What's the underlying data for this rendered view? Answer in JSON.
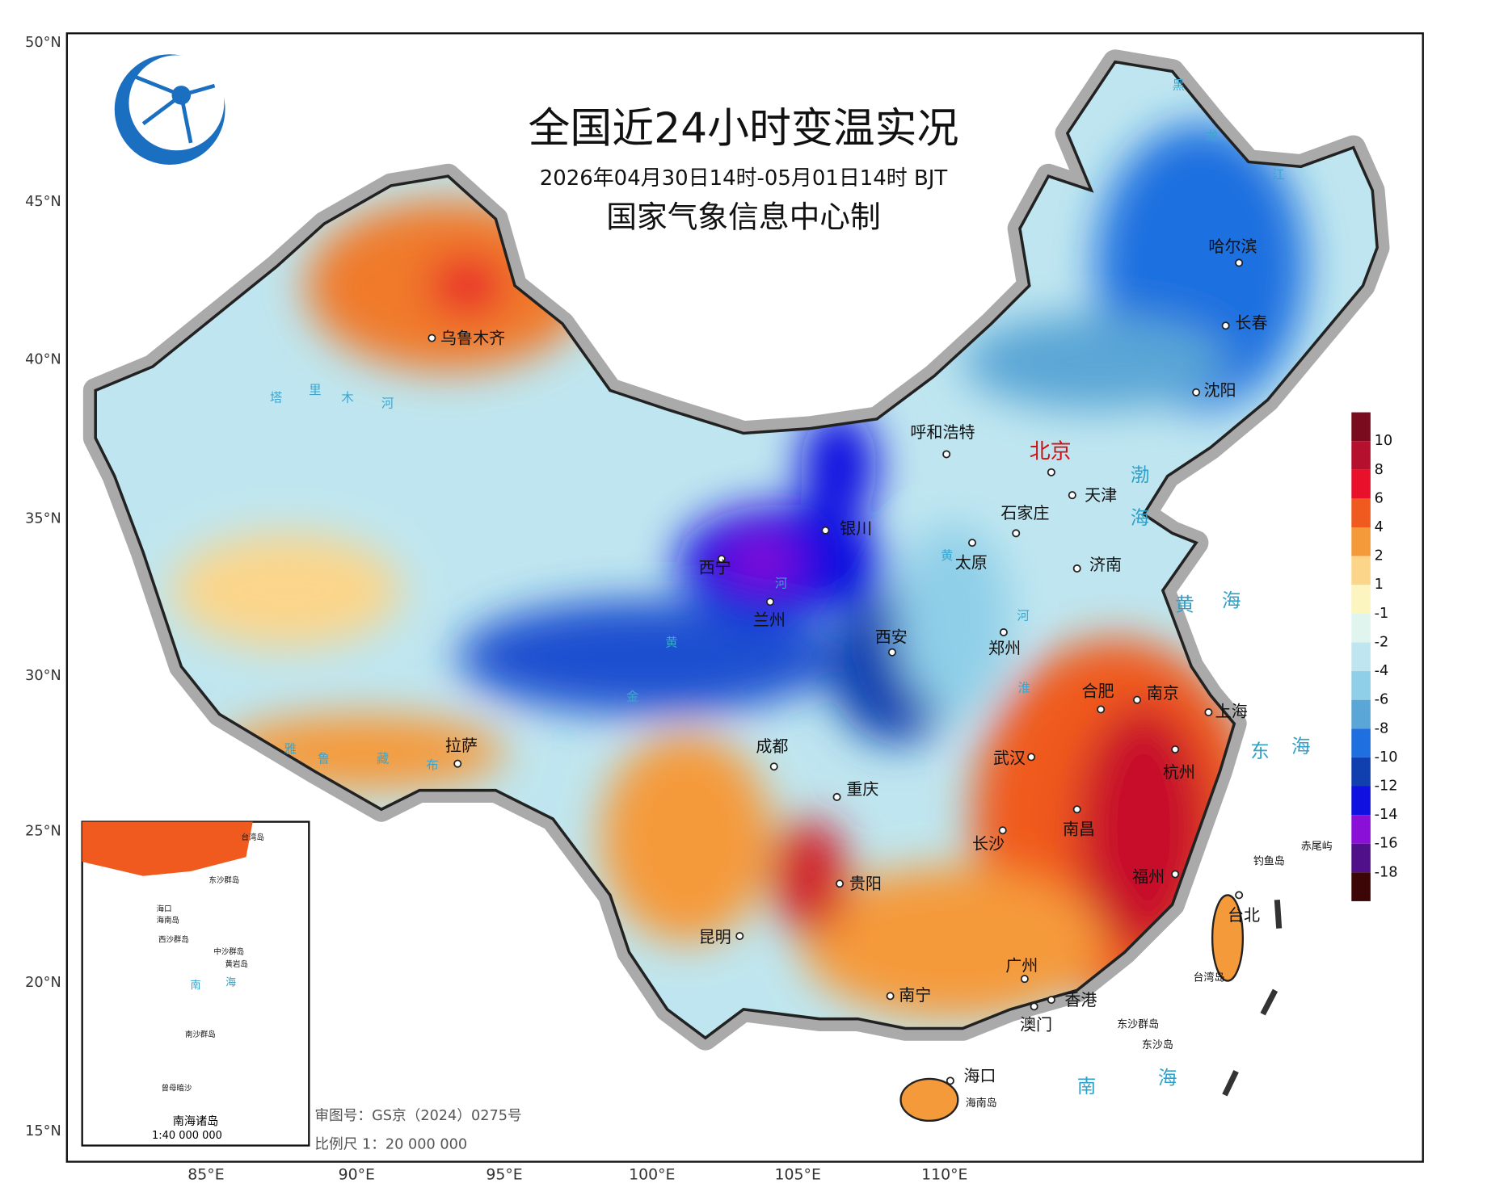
{
  "header": {
    "title": "全国近24小时变温实况",
    "subtitle": "2026年04月30日14时-05月01日14时 BJT",
    "producer": "国家气象信息中心制"
  },
  "lat_labels": [
    "50°N",
    "45°N",
    "40°N",
    "35°N",
    "30°N",
    "25°N",
    "20°N",
    "15°N"
  ],
  "lon_labels": [
    "85°E",
    "90°E",
    "95°E",
    "100°E",
    "105°E",
    "110°E"
  ],
  "cities": [
    "乌鲁木齐",
    "呼和浩特",
    "北京",
    "天津",
    "石家庄",
    "沈阳",
    "长春",
    "哈尔滨",
    "银川",
    "太原",
    "济南",
    "西宁",
    "兰州",
    "西安",
    "郑州",
    "合肥",
    "南京",
    "上海",
    "拉萨",
    "成都",
    "重庆",
    "武汉",
    "杭州",
    "长沙",
    "南昌",
    "福州",
    "贵阳",
    "昆明",
    "台北",
    "广州",
    "南宁",
    "香港",
    "澳门",
    "海口"
  ],
  "islands": [
    "台湾岛",
    "钓鱼岛",
    "赤尾屿",
    "东沙群岛",
    "东沙岛",
    "海南岛"
  ],
  "seas": [
    "渤",
    "海",
    "黄",
    "海",
    "东",
    "海",
    "南",
    "海"
  ],
  "rivers": [
    "塔",
    "里",
    "木",
    "河",
    "黄",
    "河",
    "黄",
    "河",
    "淮",
    "金",
    "雅",
    "鲁",
    "藏",
    "布",
    "黑",
    "龙",
    "江"
  ],
  "legend": {
    "ticks": [
      10,
      8,
      6,
      4,
      2,
      1,
      -1,
      -2,
      -4,
      -6,
      -8,
      -10,
      -12,
      -14,
      -16,
      -18
    ],
    "colors": [
      "#7a0a1e",
      "#b5102e",
      "#e8102a",
      "#f05a1e",
      "#f59a3a",
      "#fbd58a",
      "#fdf5c0",
      "#e0f5ee",
      "#bfe6f0",
      "#8fcfe8",
      "#5aa6d6",
      "#1f6fe0",
      "#1040b0",
      "#1010e0",
      "#8a10d8",
      "#50108a",
      "#3c0606"
    ]
  },
  "inset": {
    "title": "南海诸岛",
    "scale": "1:40 000 000",
    "labels": [
      "台湾岛",
      "东沙群岛",
      "海口",
      "海南岛",
      "西沙群岛",
      "中沙群岛",
      "黄岩岛",
      "南",
      "海",
      "南沙群岛",
      "曾母暗沙"
    ]
  },
  "footer": {
    "approval": "审图号：GS京（2024）0275号",
    "scale": "比例尺 1：20 000 000"
  }
}
